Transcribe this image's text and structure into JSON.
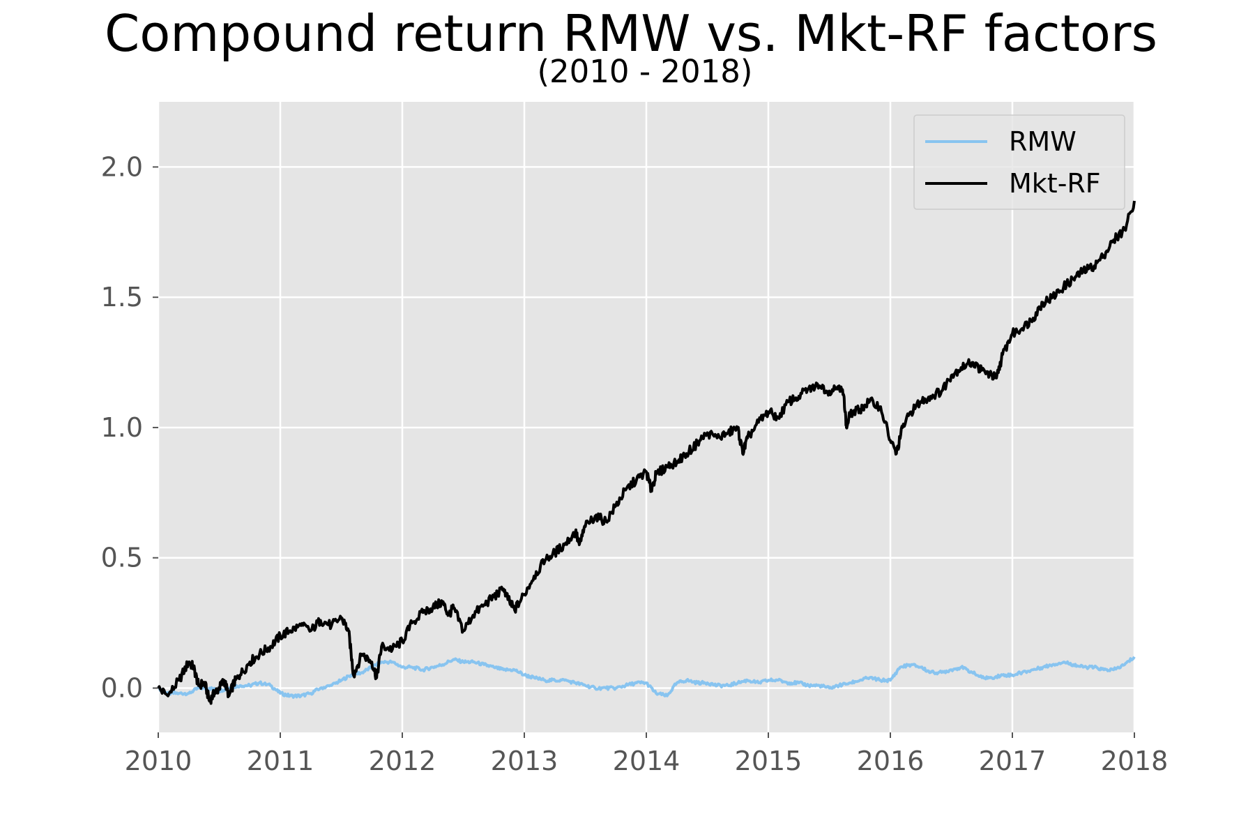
{
  "title": "Compound return RMW vs. Mkt-RF factors",
  "subtitle": "(2010 - 2018)",
  "chart_data": {
    "type": "line",
    "title": "Compound return RMW vs. Mkt-RF factors",
    "subtitle": "(2010 - 2018)",
    "xlabel": "",
    "ylabel": "",
    "xlim": [
      2010,
      2018
    ],
    "ylim": [
      -0.17,
      2.25
    ],
    "x_ticks": [
      "2010",
      "2011",
      "2012",
      "2013",
      "2014",
      "2015",
      "2016",
      "2017",
      "2018"
    ],
    "y_ticks": [
      "0.0",
      "0.5",
      "1.0",
      "1.5",
      "2.0"
    ],
    "grid": true,
    "legend_position": "upper right",
    "style": "ggplot",
    "series": [
      {
        "name": "RMW",
        "color": "#88c4f0",
        "x": [
          2010.0,
          2010.08,
          2010.17,
          2010.25,
          2010.33,
          2010.42,
          2010.5,
          2010.58,
          2010.67,
          2010.75,
          2010.83,
          2010.92,
          2011.0,
          2011.08,
          2011.17,
          2011.25,
          2011.33,
          2011.42,
          2011.5,
          2011.58,
          2011.67,
          2011.75,
          2011.83,
          2011.92,
          2012.0,
          2012.08,
          2012.17,
          2012.25,
          2012.33,
          2012.42,
          2012.5,
          2012.58,
          2012.67,
          2012.75,
          2012.83,
          2012.92,
          2013.0,
          2013.08,
          2013.17,
          2013.25,
          2013.33,
          2013.42,
          2013.5,
          2013.58,
          2013.67,
          2013.75,
          2013.83,
          2013.92,
          2014.0,
          2014.08,
          2014.17,
          2014.25,
          2014.33,
          2014.42,
          2014.5,
          2014.58,
          2014.67,
          2014.75,
          2014.83,
          2014.92,
          2015.0,
          2015.08,
          2015.17,
          2015.25,
          2015.33,
          2015.42,
          2015.5,
          2015.58,
          2015.67,
          2015.75,
          2015.83,
          2015.92,
          2016.0,
          2016.08,
          2016.17,
          2016.25,
          2016.33,
          2016.42,
          2016.5,
          2016.58,
          2016.67,
          2016.75,
          2016.83,
          2016.92,
          2017.0,
          2017.08,
          2017.17,
          2017.25,
          2017.33,
          2017.42,
          2017.5,
          2017.58,
          2017.67,
          2017.75,
          2017.83,
          2017.92,
          2018.0
        ],
        "values": [
          0.0,
          -0.02,
          -0.02,
          -0.02,
          0.0,
          0.0,
          -0.01,
          0.0,
          0.01,
          0.01,
          0.02,
          0.01,
          -0.02,
          -0.03,
          -0.03,
          -0.02,
          0.0,
          0.01,
          0.03,
          0.05,
          0.06,
          0.08,
          0.1,
          0.1,
          0.08,
          0.08,
          0.07,
          0.08,
          0.09,
          0.11,
          0.1,
          0.1,
          0.09,
          0.08,
          0.07,
          0.07,
          0.05,
          0.04,
          0.03,
          0.03,
          0.03,
          0.02,
          0.01,
          0.0,
          0.0,
          0.0,
          0.01,
          0.02,
          0.02,
          -0.02,
          -0.03,
          0.02,
          0.03,
          0.02,
          0.02,
          0.01,
          0.01,
          0.02,
          0.03,
          0.02,
          0.03,
          0.03,
          0.02,
          0.02,
          0.01,
          0.01,
          0.0,
          0.01,
          0.02,
          0.03,
          0.04,
          0.03,
          0.03,
          0.08,
          0.09,
          0.08,
          0.06,
          0.06,
          0.07,
          0.08,
          0.06,
          0.04,
          0.04,
          0.05,
          0.05,
          0.06,
          0.07,
          0.08,
          0.09,
          0.1,
          0.09,
          0.08,
          0.08,
          0.07,
          0.07,
          0.09,
          0.12
        ]
      },
      {
        "name": "Mkt-RF",
        "color": "#000000",
        "x": [
          2010.0,
          2010.08,
          2010.17,
          2010.25,
          2010.29,
          2010.33,
          2010.38,
          2010.42,
          2010.46,
          2010.5,
          2010.54,
          2010.58,
          2010.62,
          2010.67,
          2010.75,
          2010.83,
          2010.92,
          2011.0,
          2011.08,
          2011.17,
          2011.25,
          2011.33,
          2011.42,
          2011.5,
          2011.56,
          2011.6,
          2011.67,
          2011.75,
          2011.79,
          2011.83,
          2011.92,
          2012.0,
          2012.08,
          2012.17,
          2012.25,
          2012.33,
          2012.38,
          2012.42,
          2012.5,
          2012.58,
          2012.67,
          2012.75,
          2012.83,
          2012.88,
          2012.92,
          2013.0,
          2013.08,
          2013.17,
          2013.25,
          2013.33,
          2013.42,
          2013.45,
          2013.5,
          2013.58,
          2013.67,
          2013.75,
          2013.83,
          2013.92,
          2014.0,
          2014.04,
          2014.08,
          2014.17,
          2014.25,
          2014.33,
          2014.42,
          2014.5,
          2014.58,
          2014.67,
          2014.75,
          2014.79,
          2014.83,
          2014.92,
          2015.0,
          2015.08,
          2015.17,
          2015.25,
          2015.33,
          2015.42,
          2015.5,
          2015.58,
          2015.62,
          2015.64,
          2015.67,
          2015.75,
          2015.83,
          2015.92,
          2016.0,
          2016.05,
          2016.1,
          2016.17,
          2016.25,
          2016.33,
          2016.42,
          2016.5,
          2016.58,
          2016.67,
          2016.75,
          2016.83,
          2016.87,
          2016.92,
          2017.0,
          2017.08,
          2017.17,
          2017.25,
          2017.33,
          2017.42,
          2017.5,
          2017.58,
          2017.67,
          2017.75,
          2017.83,
          2017.92,
          2018.0
        ],
        "values": [
          0.0,
          -0.03,
          0.03,
          0.1,
          0.08,
          0.01,
          0.02,
          -0.05,
          -0.02,
          0.0,
          0.03,
          -0.03,
          0.02,
          0.05,
          0.1,
          0.13,
          0.16,
          0.2,
          0.22,
          0.24,
          0.22,
          0.26,
          0.24,
          0.27,
          0.22,
          0.05,
          0.13,
          0.1,
          0.04,
          0.16,
          0.15,
          0.18,
          0.25,
          0.29,
          0.31,
          0.33,
          0.28,
          0.31,
          0.22,
          0.28,
          0.32,
          0.35,
          0.38,
          0.33,
          0.3,
          0.36,
          0.43,
          0.49,
          0.52,
          0.55,
          0.6,
          0.55,
          0.62,
          0.66,
          0.64,
          0.7,
          0.76,
          0.8,
          0.83,
          0.76,
          0.82,
          0.85,
          0.87,
          0.9,
          0.94,
          0.98,
          0.96,
          0.98,
          1.0,
          0.9,
          0.96,
          1.02,
          1.06,
          1.04,
          1.1,
          1.12,
          1.15,
          1.16,
          1.14,
          1.16,
          1.12,
          1.0,
          1.05,
          1.07,
          1.1,
          1.08,
          0.95,
          0.9,
          1.0,
          1.06,
          1.1,
          1.12,
          1.14,
          1.2,
          1.23,
          1.25,
          1.22,
          1.2,
          1.19,
          1.28,
          1.36,
          1.38,
          1.42,
          1.48,
          1.5,
          1.54,
          1.57,
          1.6,
          1.62,
          1.66,
          1.72,
          1.76,
          1.87
        ]
      }
    ]
  }
}
